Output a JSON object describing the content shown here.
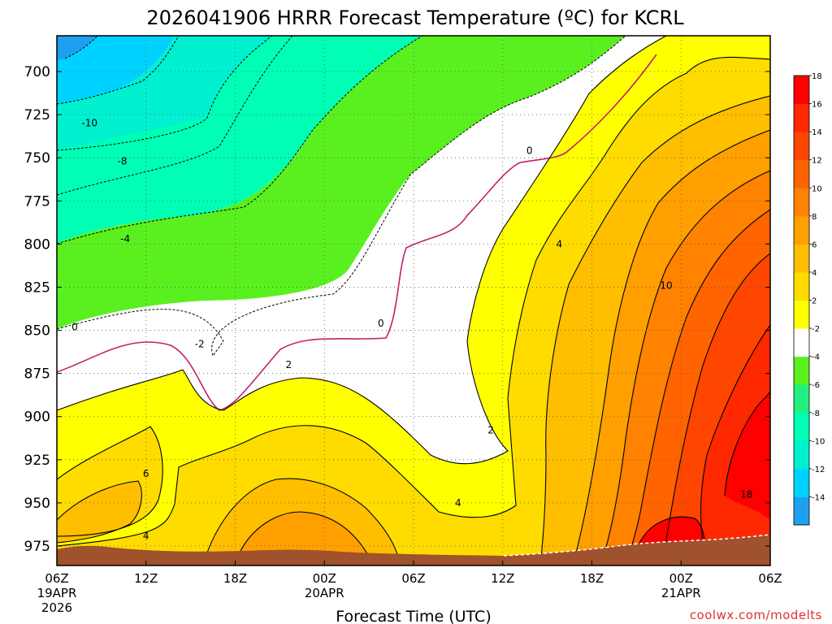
{
  "chart_data": {
    "type": "heatmap",
    "title": "2026041906 HRRR Forecast Temperature (ºC) for KCRL",
    "xlabel": "Forecast Time (UTC)",
    "ylabel": "",
    "credit": "coolwx.com/modelts",
    "y_scale": "pressure (hPa), decreasing upward",
    "ylim": [
      985,
      680
    ],
    "y_ticks": [
      700,
      725,
      750,
      775,
      800,
      825,
      850,
      875,
      900,
      925,
      950,
      975
    ],
    "x_ticks": [
      {
        "label": "06Z",
        "sub1": "19APR",
        "sub2": "2026",
        "hour": 0
      },
      {
        "label": "12Z",
        "sub1": "",
        "sub2": "",
        "hour": 6
      },
      {
        "label": "18Z",
        "sub1": "",
        "sub2": "",
        "hour": 12
      },
      {
        "label": "00Z",
        "sub1": "20APR",
        "sub2": "",
        "hour": 18
      },
      {
        "label": "06Z",
        "sub1": "",
        "sub2": "",
        "hour": 24
      },
      {
        "label": "12Z",
        "sub1": "",
        "sub2": "",
        "hour": 30
      },
      {
        "label": "18Z",
        "sub1": "",
        "sub2": "",
        "hour": 36
      },
      {
        "label": "00Z",
        "sub1": "21APR",
        "sub2": "",
        "hour": 42
      },
      {
        "label": "06Z",
        "sub1": "",
        "sub2": "",
        "hour": 48
      }
    ],
    "xlim_hours": [
      0,
      48
    ],
    "grid": true,
    "colorbar": {
      "placement": "right",
      "levels": [
        -16,
        -14,
        -12,
        -10,
        -8,
        -6,
        -4,
        -2,
        2,
        4,
        6,
        8,
        10,
        12,
        14,
        16,
        18,
        20
      ],
      "tick_labels": [
        "-14",
        "-12",
        "-10",
        "-8",
        "-6",
        "-4",
        "-2",
        "2",
        "4",
        "6",
        "8",
        "10",
        "12",
        "14",
        "16",
        "18"
      ],
      "colors": [
        "#1ea0f0",
        "#00d2ff",
        "#00f0d0",
        "#00ffb4",
        "#20f080",
        "#5af020",
        "#ffffff",
        "#ffff00",
        "#ffdc00",
        "#ffbe00",
        "#ffa000",
        "#ff8200",
        "#ff6400",
        "#ff4600",
        "#ff2800",
        "#ff0000"
      ]
    },
    "contour_labels": [
      {
        "text": "-10",
        "hour": 2.2,
        "p": 730
      },
      {
        "text": "-8",
        "hour": 4.4,
        "p": 752
      },
      {
        "text": "-4",
        "hour": 4.6,
        "p": 797
      },
      {
        "text": "0",
        "hour": 1.2,
        "p": 848
      },
      {
        "text": "-2",
        "hour": 9.6,
        "p": 858
      },
      {
        "text": "2",
        "hour": 15.6,
        "p": 870
      },
      {
        "text": "0",
        "hour": 21.8,
        "p": 846
      },
      {
        "text": "0",
        "hour": 31.8,
        "p": 746
      },
      {
        "text": "4",
        "hour": 33.8,
        "p": 800
      },
      {
        "text": "10",
        "hour": 41.0,
        "p": 824
      },
      {
        "text": "2",
        "hour": 29.2,
        "p": 908
      },
      {
        "text": "6",
        "hour": 6.0,
        "p": 933
      },
      {
        "text": "4",
        "hour": 27.0,
        "p": 950
      },
      {
        "text": "4",
        "hour": 6.0,
        "p": 969
      },
      {
        "text": "18",
        "hour": 46.4,
        "p": 945
      }
    ]
  }
}
